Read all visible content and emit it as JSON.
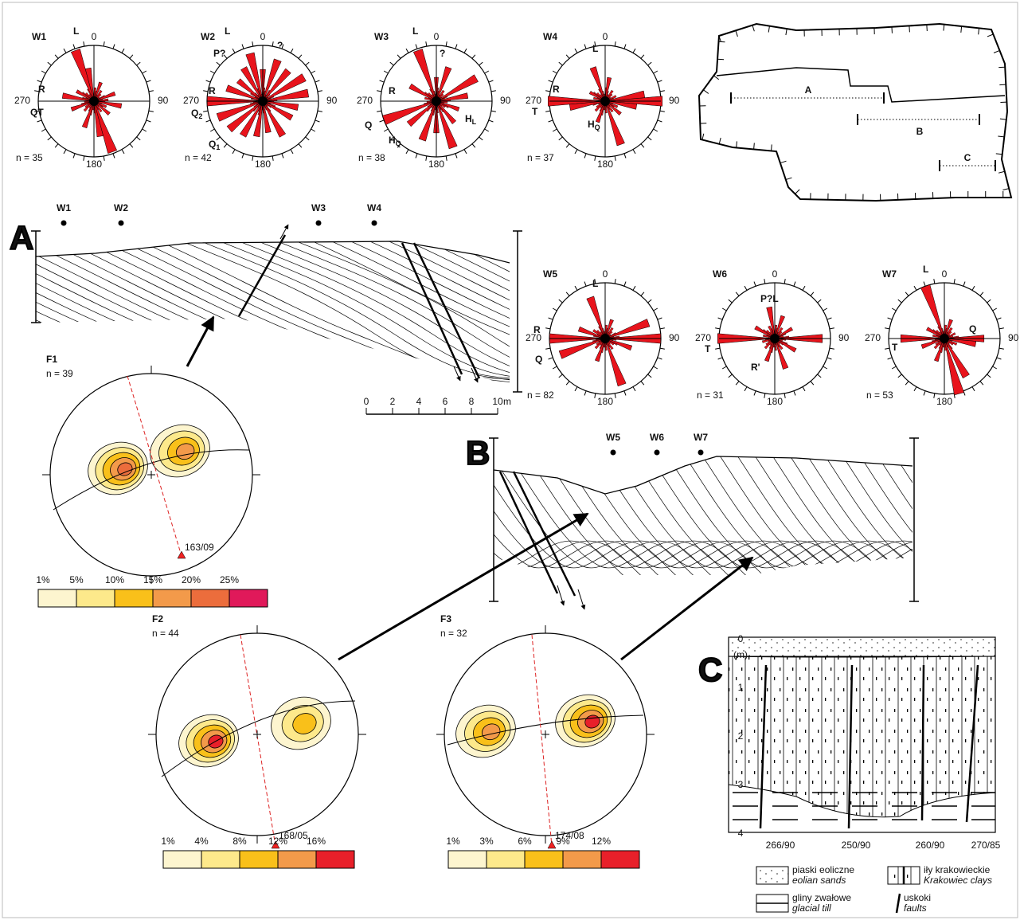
{
  "roses": [
    {
      "id": "W1",
      "axes": [
        "0",
        "90",
        "180",
        "270"
      ],
      "n": "n = 35",
      "labels": [
        "L",
        "R",
        "QT"
      ]
    },
    {
      "id": "W2",
      "axes": [
        "0",
        "90",
        "180",
        "270"
      ],
      "n": "n = 42",
      "labels": [
        "L",
        "P?",
        "?",
        "R",
        {
          "text": "Q",
          "sub": "2"
        },
        {
          "text": "Q",
          "sub": "1"
        }
      ]
    },
    {
      "id": "W3",
      "axes": [
        "0",
        "90",
        "180",
        "270"
      ],
      "n": "n = 38",
      "labels": [
        "L",
        "?",
        "R",
        "Q",
        {
          "text": "H",
          "sub": "Q"
        },
        {
          "text": "H",
          "sub": "L"
        }
      ]
    },
    {
      "id": "W4",
      "axes": [
        "0",
        "90",
        "180",
        "270"
      ],
      "n": "n = 37",
      "labels": [
        "L",
        "R",
        "T",
        {
          "text": "H",
          "sub": "Q"
        }
      ]
    },
    {
      "id": "W5",
      "axes": [
        "0",
        "90",
        "180",
        "270"
      ],
      "n": "n = 82",
      "labels": [
        "L",
        "R",
        "Q"
      ]
    },
    {
      "id": "W6",
      "axes": [
        "0",
        "90",
        "180",
        "270"
      ],
      "n": "n = 31",
      "labels": [
        "P?L",
        "T",
        "R'"
      ]
    },
    {
      "id": "W7",
      "axes": [
        "0",
        "90",
        "180",
        "270"
      ],
      "n": "n = 53",
      "labels": [
        "L",
        "T",
        "Q"
      ]
    }
  ],
  "map": {
    "labels": [
      "A",
      "B",
      "C"
    ]
  },
  "profiles": [
    {
      "label": "A",
      "stations": [
        "W1",
        "W2",
        "W3",
        "W4"
      ]
    },
    {
      "label": "B",
      "stations": [
        "W5",
        "W6",
        "W7"
      ]
    }
  ],
  "scale_bar": {
    "ticks": [
      "0",
      "2",
      "4",
      "6",
      "8",
      "10"
    ],
    "unit": "m"
  },
  "stereonets": [
    {
      "id": "F1",
      "n": "n = 39",
      "orientation": "163/09"
    },
    {
      "id": "F2",
      "n": "n = 44",
      "orientation": "168/05"
    },
    {
      "id": "F3",
      "n": "n = 32",
      "orientation": "174/08"
    }
  ],
  "color_scales": [
    {
      "labels": [
        "1%",
        "5%",
        "10%",
        "15%",
        "20%",
        "25%"
      ]
    },
    {
      "labels": [
        "1%",
        "4%",
        "8%",
        "12%",
        "16%"
      ]
    },
    {
      "labels": [
        "1%",
        "3%",
        "6%",
        "9%",
        "12%"
      ]
    }
  ],
  "log": {
    "label": "C",
    "depths": [
      "0",
      "1",
      "2",
      "3",
      "4"
    ],
    "unit": "(m)",
    "faults": [
      "266/90",
      "250/90",
      "260/90",
      "270/85"
    ]
  },
  "legend": [
    {
      "pl": "piaski eoliczne",
      "en": "eolian sands"
    },
    {
      "pl": "iły krakowieckie",
      "en": "Krakowiec clays"
    },
    {
      "pl": "gliny zwałowe",
      "en": "glacial till"
    },
    {
      "pl": "uskoki",
      "en": "faults"
    }
  ]
}
